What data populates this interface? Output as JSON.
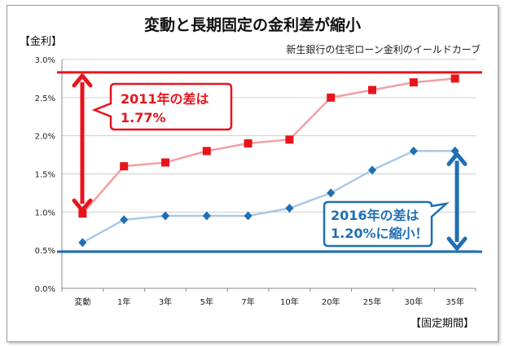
{
  "chart_data": {
    "type": "line",
    "title": "変動と長期固定の金利差が縮小",
    "subtitle": "新生銀行の住宅ローン金利のイールドカーブ",
    "ylabel": "【金利】",
    "xlabel": "【固定期間】",
    "categories": [
      "変動",
      "1年",
      "3年",
      "5年",
      "7年",
      "10年",
      "20年",
      "25年",
      "30年",
      "35年"
    ],
    "ylim": [
      0,
      3.0
    ],
    "ytick_labels": [
      "0.0%",
      "0.5%",
      "1.0%",
      "1.5%",
      "2.0%",
      "2.5%",
      "3.0%"
    ],
    "grid": "horizontal",
    "series": [
      {
        "values": [
          0.98,
          1.6,
          1.65,
          1.8,
          1.9,
          1.95,
          2.5,
          2.6,
          2.7,
          2.75
        ],
        "color": "#e8141c",
        "line_color": "#f2a0a4",
        "marker": "square"
      },
      {
        "values": [
          0.6,
          0.9,
          0.95,
          0.95,
          0.95,
          1.05,
          1.25,
          1.55,
          1.8,
          1.8
        ],
        "color": "#1f6fb5",
        "line_color": "#a9c9e6",
        "marker": "diamond"
      }
    ],
    "reference_lines": [
      {
        "value": 2.83,
        "color": "#e8141c"
      },
      {
        "value": 0.48,
        "color": "#1f6fb5"
      }
    ],
    "annotations": [
      {
        "lines": [
          "2011年の差は",
          "1.77%"
        ],
        "color": "#e8141c"
      },
      {
        "lines": [
          "2016年の差は",
          "1.20%に縮小！"
        ],
        "color": "#1f6fb5"
      }
    ]
  }
}
